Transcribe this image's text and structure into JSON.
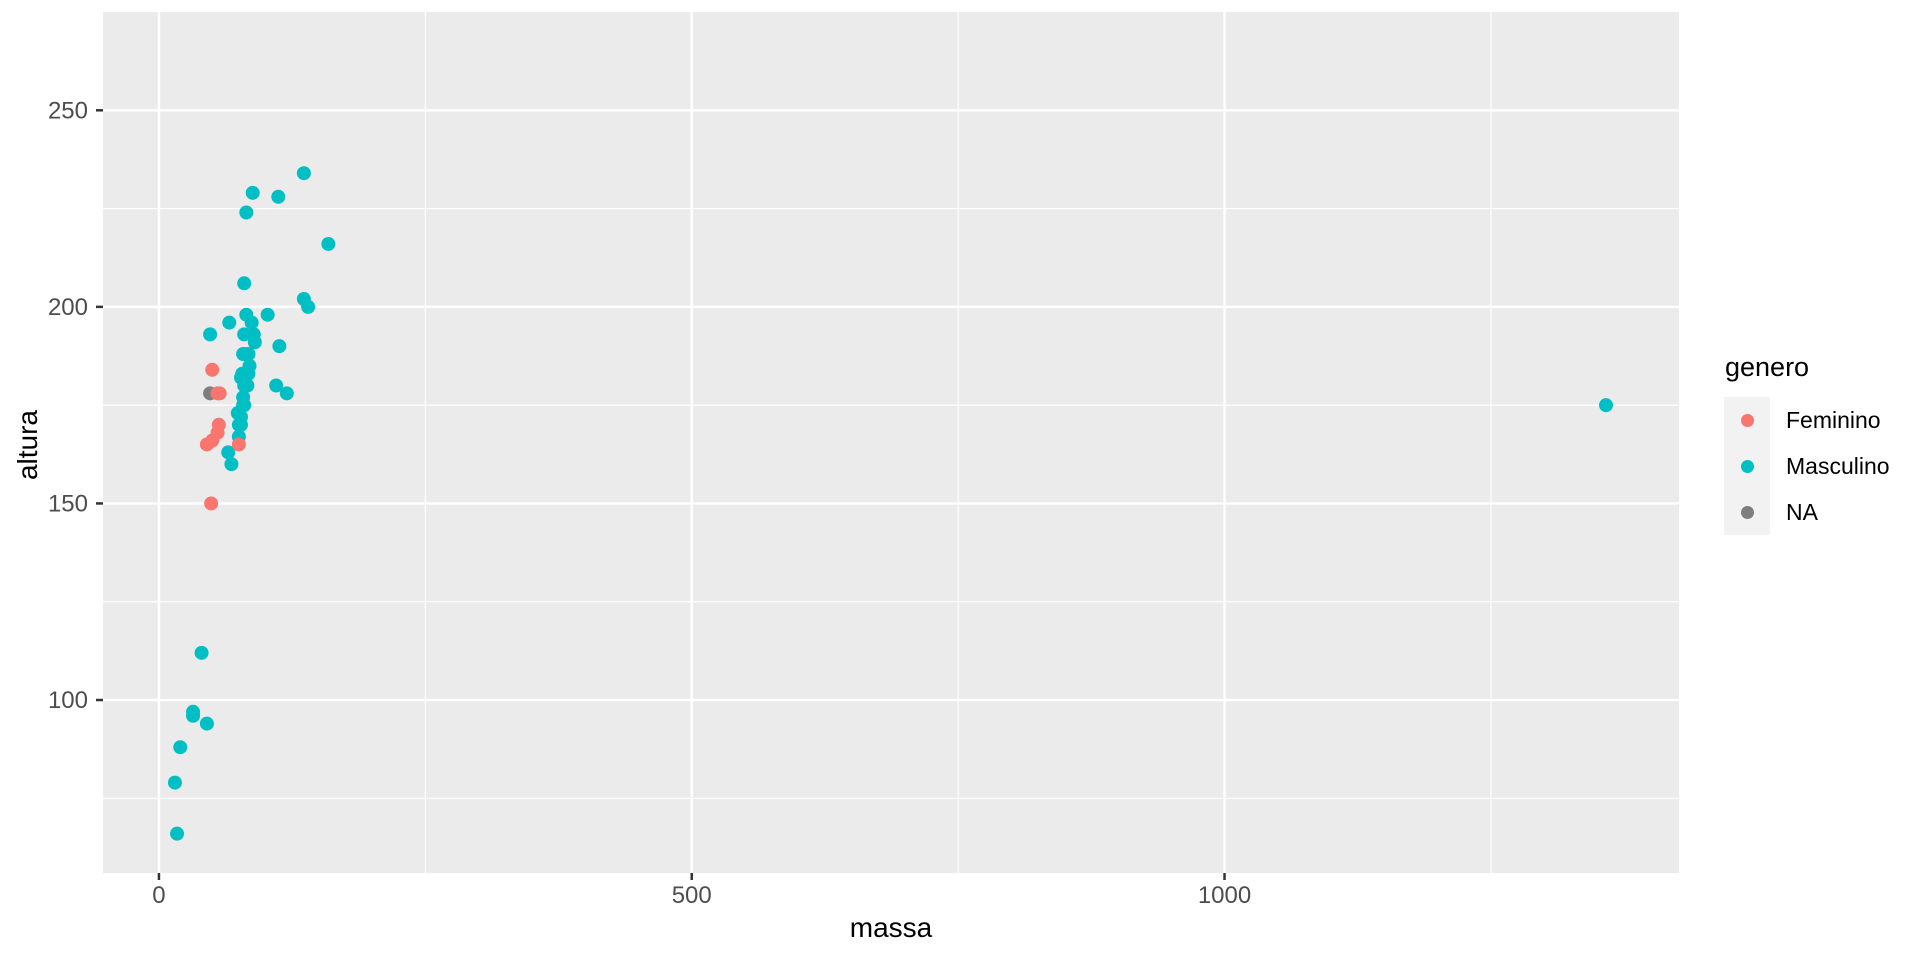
{
  "chart_data": {
    "type": "scatter",
    "title": "",
    "xlabel": "massa",
    "ylabel": "altura",
    "xlim": [
      -52.5,
      1426.5
    ],
    "ylim": [
      56,
      275
    ],
    "x_major_ticks": [
      0,
      500,
      1000
    ],
    "x_minor_ticks": [
      250,
      750,
      1250
    ],
    "y_major_ticks": [
      100,
      150,
      200,
      250
    ],
    "y_minor_ticks": [
      75,
      125,
      175,
      225
    ],
    "grid": true,
    "legend_position": "right",
    "legend_title": "genero",
    "draw_order": [
      2,
      1,
      0
    ],
    "series": [
      {
        "name": "Feminino",
        "color": "#F8766D",
        "points": [
          [
            49,
            150
          ],
          [
            75,
            165
          ],
          [
            45,
            165
          ],
          [
            55,
            178
          ],
          [
            50,
            184
          ],
          [
            56.2,
            170
          ],
          [
            50,
            166
          ],
          [
            55,
            168
          ],
          [
            57,
            178
          ]
        ]
      },
      {
        "name": "Masculino",
        "color": "#00BFC4",
        "points": [
          [
            77,
            172
          ],
          [
            75,
            167
          ],
          [
            32,
            96
          ],
          [
            136,
            202
          ],
          [
            120,
            178
          ],
          [
            32,
            97
          ],
          [
            84,
            183
          ],
          [
            77,
            182
          ],
          [
            84,
            188
          ],
          [
            112,
            228
          ],
          [
            80,
            180
          ],
          [
            74,
            173
          ],
          [
            1358,
            175
          ],
          [
            77,
            170
          ],
          [
            110,
            180
          ],
          [
            17,
            66
          ],
          [
            75,
            170
          ],
          [
            78.2,
            183
          ],
          [
            140,
            200
          ],
          [
            113,
            190
          ],
          [
            79,
            177
          ],
          [
            79,
            175
          ],
          [
            83,
            180
          ],
          [
            20,
            88
          ],
          [
            68,
            160
          ],
          [
            89,
            193
          ],
          [
            90,
            191
          ],
          [
            66,
            196
          ],
          [
            82,
            224
          ],
          [
            40,
            112
          ],
          [
            80,
            175
          ],
          [
            15,
            79
          ],
          [
            45,
            94
          ],
          [
            65,
            163
          ],
          [
            84,
            188
          ],
          [
            82,
            198
          ],
          [
            87,
            196
          ],
          [
            80,
            188
          ],
          [
            85,
            185
          ],
          [
            80,
            183
          ],
          [
            80,
            193
          ],
          [
            79,
            183
          ],
          [
            102,
            198
          ],
          [
            88,
            229
          ],
          [
            48,
            193
          ],
          [
            159,
            216
          ],
          [
            136,
            234
          ],
          [
            79,
            188
          ],
          [
            80,
            206
          ]
        ]
      },
      {
        "name": "NA",
        "color": "#7F7F7F",
        "points": [
          [
            48,
            178
          ]
        ]
      }
    ]
  },
  "colors": {
    "figure_bg": "#FFFFFF",
    "panel_bg": "#EBEBEB",
    "gridline": "#FFFFFF",
    "tick_mark": "#333333",
    "tick_label": "#4D4D4D",
    "axis_title": "#000000",
    "legend_key_bg": "#F2F2F2"
  }
}
